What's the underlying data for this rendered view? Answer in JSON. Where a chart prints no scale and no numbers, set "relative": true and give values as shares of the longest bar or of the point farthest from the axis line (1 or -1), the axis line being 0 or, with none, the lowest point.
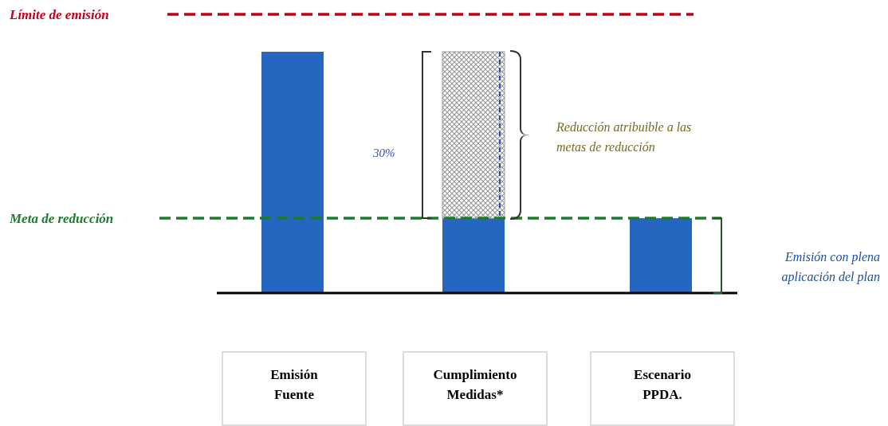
{
  "chart_data": {
    "type": "bar",
    "relative": true,
    "stacked": true,
    "categories": [
      "Emisión Fuente",
      "Cumplimiento Medidas*",
      "Escenario PPDA."
    ],
    "series": [
      {
        "color": "#2566c0",
        "values": [
          1,
          0.31,
          0.31
        ]
      },
      {
        "color": "#9a9a9a",
        "values": [
          null,
          0.69,
          null
        ]
      }
    ],
    "ref_lines": [
      {
        "axis": "y",
        "value": 1.155,
        "label": "Límite de emisión",
        "color": "#c0001a",
        "line_style": "dashed"
      },
      {
        "axis": "y",
        "value": 0.31,
        "label": "Meta de reducción",
        "color": "#1f7a2e",
        "line_style": "dashed"
      }
    ],
    "annotations": [
      "30%",
      "Reducción atribuible a las metas de reducción",
      "Emisión con plena aplicación del plan"
    ],
    "grid": false,
    "legend": false
  }
}
